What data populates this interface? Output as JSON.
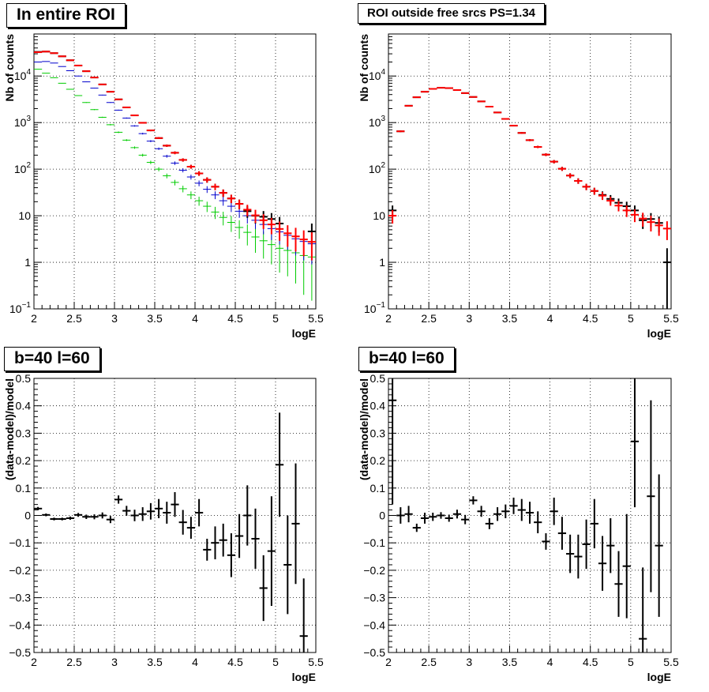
{
  "colors": {
    "data": "#000000",
    "model": "#ff0000",
    "blue": "#0000cc",
    "green": "#00cc00"
  },
  "pads": [
    {
      "title": "In entire ROI",
      "xlabel": "logE",
      "ylabel": "Nb of counts",
      "chart_data": {
        "type": "scatter",
        "log_y": true,
        "grid": true,
        "xlim": [
          2,
          5.5
        ],
        "ylim": [
          0.1,
          80000
        ],
        "x_ticks": [
          "2",
          "2.5",
          "3",
          "3.5",
          "4",
          "4.5",
          "5",
          "5.5"
        ],
        "y_ticks": [
          {
            "v": 0.1,
            "base": "10",
            "exp": "−1"
          },
          {
            "v": 1,
            "label": "1"
          },
          {
            "v": 10,
            "label": "10"
          },
          {
            "v": 100,
            "base": "10",
            "exp": "2"
          },
          {
            "v": 1000,
            "base": "10",
            "exp": "3"
          },
          {
            "v": 10000,
            "base": "10",
            "exp": "4"
          }
        ],
        "x": [
          2.05,
          2.15,
          2.25,
          2.35,
          2.45,
          2.55,
          2.65,
          2.75,
          2.85,
          2.95,
          3.05,
          3.15,
          3.25,
          3.35,
          3.45,
          3.55,
          3.65,
          3.75,
          3.85,
          3.95,
          4.05,
          4.15,
          4.25,
          4.35,
          4.45,
          4.55,
          4.65,
          4.75,
          4.85,
          4.95,
          5.05,
          5.15,
          5.25,
          5.35,
          5.45
        ],
        "series": [
          {
            "color": "green",
            "style": "tick",
            "values": [
              14000,
              11500,
              9200,
              7000,
              5200,
              3800,
              2700,
              1900,
              1300,
              900,
              620,
              420,
              290,
              200,
              140,
              100,
              72,
              52,
              38,
              28,
              21,
              16,
              12,
              9.2,
              7.2,
              5.6,
              4.4,
              3.5,
              2.9,
              2.4,
              2.0,
              1.8,
              1.6,
              1.4,
              1.3
            ],
            "errors": [
              118,
              107,
              96,
              84,
              72,
              62,
              52,
              44,
              36,
              30,
              25,
              20,
              17,
              14,
              12,
              10,
              8.5,
              7.2,
              6.2,
              5.3,
              4.6,
              4,
              3.5,
              3,
              2.7,
              2.4,
              2.1,
              1.9,
              1.7,
              1.5,
              1.4,
              1.3,
              1.25,
              1.2,
              1.15
            ]
          },
          {
            "color": "blue",
            "style": "tick",
            "values": [
              20000,
              20500,
              19000,
              16000,
              13000,
              10000,
              7500,
              5500,
              3900,
              2700,
              1850,
              1250,
              850,
              580,
              400,
              275,
              190,
              135,
              95,
              68,
              50,
              37,
              28,
              21,
              16,
              12.5,
              10,
              8,
              6.5,
              5.3,
              4.5,
              3.8,
              3.2,
              2.8,
              2.5
            ],
            "errors": [
              140,
              143,
              138,
              126,
              114,
              100,
              87,
              74,
              62,
              52,
              43,
              35,
              29,
              24,
              20,
              16.6,
              13.8,
              11.6,
              9.7,
              8.2,
              7,
              6.1,
              5.3,
              4.6,
              4,
              3.5,
              3.2,
              2.8,
              2.5,
              2.3,
              2.1,
              1.95,
              1.8,
              1.7,
              1.6
            ]
          },
          {
            "color": "data",
            "style": "cross",
            "values": [
              33000,
              33500,
              31000,
              26500,
              21800,
              16800,
              12700,
              9300,
              6600,
              4600,
              3150,
              2120,
              1430,
              990,
              680,
              465,
              320,
              225,
              158,
              113,
              81,
              59,
              42,
              31,
              23.5,
              18,
              12.5,
              10,
              9.5,
              8.5,
              6.8,
              null,
              null,
              null,
              4.6
            ],
            "errors": [
              180,
              180,
              175,
              163,
              148,
              130,
              113,
              96,
              81,
              68,
              56,
              46,
              38,
              31,
              26,
              21.6,
              17.9,
              15,
              12.6,
              10.6,
              9,
              7.7,
              6.5,
              5.6,
              4.8,
              4.2,
              3.5,
              3.2,
              3.1,
              2.9,
              2.6,
              null,
              null,
              null,
              2.2
            ]
          },
          {
            "color": "model",
            "style": "cross",
            "values": [
              32500,
              33500,
              31000,
              26500,
              21800,
              16800,
              12700,
              9300,
              6600,
              4600,
              3150,
              2120,
              1430,
              990,
              680,
              465,
              320,
              225,
              158,
              113,
              81,
              59,
              42,
              31,
              23.5,
              18,
              13.5,
              10.2,
              8,
              6.5,
              5.2,
              4.2,
              3.6,
              3.1,
              2.75
            ],
            "errors": [
              180,
              180,
              175,
              163,
              148,
              130,
              113,
              96,
              81,
              68,
              56,
              46,
              38,
              31,
              26,
              21.6,
              17.9,
              15,
              12.6,
              10.6,
              9,
              7.7,
              6.5,
              5.6,
              4.8,
              4.2,
              3.7,
              3.2,
              2.8,
              2.5,
              2.3,
              2.05,
              1.9,
              1.75,
              1.65
            ]
          }
        ]
      }
    },
    {
      "title": "ROI outside free srcs PS=1.34",
      "xlabel": "logE",
      "ylabel": "Nb of counts",
      "chart_data": {
        "type": "scatter",
        "log_y": true,
        "grid": true,
        "xlim": [
          2,
          5.5
        ],
        "ylim": [
          0.1,
          80000
        ],
        "x_ticks": [
          "2",
          "2.5",
          "3",
          "3.5",
          "4",
          "4.5",
          "5",
          "5.5"
        ],
        "y_ticks": [
          {
            "v": 0.1,
            "base": "10",
            "exp": "−1"
          },
          {
            "v": 1,
            "label": "1"
          },
          {
            "v": 10,
            "label": "10"
          },
          {
            "v": 100,
            "base": "10",
            "exp": "2"
          },
          {
            "v": 1000,
            "base": "10",
            "exp": "3"
          },
          {
            "v": 10000,
            "base": "10",
            "exp": "4"
          }
        ],
        "x": [
          2.05,
          2.15,
          2.25,
          2.35,
          2.45,
          2.55,
          2.65,
          2.75,
          2.85,
          2.95,
          3.05,
          3.15,
          3.25,
          3.35,
          3.45,
          3.55,
          3.65,
          3.75,
          3.85,
          3.95,
          4.05,
          4.15,
          4.25,
          4.35,
          4.45,
          4.55,
          4.65,
          4.75,
          4.85,
          4.95,
          5.05,
          5.15,
          5.25,
          5.35,
          5.45
        ],
        "series": [
          {
            "color": "data",
            "style": "cross",
            "values": [
              13,
              650,
              2300,
              3500,
              4600,
              5300,
              5600,
              5500,
              5000,
              4300,
              3550,
              2850,
              2200,
              1650,
              1200,
              860,
              600,
              420,
              300,
              205,
              145,
              102,
              73,
              56,
              42,
              34,
              28,
              23,
              19,
              16,
              13,
              8,
              8.5,
              7,
              1
            ],
            "errors": [
              3.6,
              25,
              48,
              59,
              68,
              73,
              75,
              74,
              71,
              66,
              60,
              53,
              47,
              41,
              35,
              29,
              24,
              20,
              17,
              14,
              12,
              10,
              8.5,
              7.5,
              6.5,
              5.8,
              5.3,
              4.8,
              4.4,
              4,
              3.6,
              2.8,
              2.9,
              2.6,
              1
            ]
          },
          {
            "color": "model",
            "style": "cross",
            "values": [
              10,
              650,
              2300,
              3500,
              4600,
              5300,
              5600,
              5500,
              5000,
              4300,
              3550,
              2850,
              2200,
              1650,
              1200,
              860,
              600,
              420,
              300,
              205,
              145,
              102,
              73,
              56,
              42,
              34,
              27,
              21,
              16.5,
              13,
              10.5,
              8.7,
              7.3,
              6.2,
              5.3
            ],
            "errors": [
              3.2,
              25,
              48,
              59,
              68,
              73,
              75,
              74,
              71,
              66,
              60,
              53,
              47,
              41,
              35,
              29,
              24,
              20,
              17,
              14,
              12,
              10,
              8.5,
              7.5,
              6.5,
              5.8,
              5.2,
              4.6,
              4.1,
              3.6,
              3.2,
              2.9,
              2.7,
              2.5,
              2.3
            ]
          }
        ]
      }
    },
    {
      "title": "b=40 l=60",
      "xlabel": "logE",
      "ylabel": "(data-model)/model",
      "chart_data": {
        "type": "scatter",
        "log_y": false,
        "grid": true,
        "xlim": [
          2,
          5.5
        ],
        "ylim": [
          -0.5,
          0.5
        ],
        "x_ticks": [
          "2",
          "2.5",
          "3",
          "3.5",
          "4",
          "4.5",
          "5",
          "5.5"
        ],
        "y_ticks": [
          {
            "v": -0.5,
            "label": "−0.5"
          },
          {
            "v": -0.4,
            "label": "−0.4"
          },
          {
            "v": -0.3,
            "label": "−0.3"
          },
          {
            "v": -0.2,
            "label": "−0.2"
          },
          {
            "v": -0.1,
            "label": "−0.1"
          },
          {
            "v": 0,
            "label": "0"
          },
          {
            "v": 0.1,
            "label": "0.1"
          },
          {
            "v": 0.2,
            "label": "0.2"
          },
          {
            "v": 0.3,
            "label": "0.3"
          },
          {
            "v": 0.4,
            "label": "0.4"
          },
          {
            "v": 0.5,
            "label": "0.5"
          }
        ],
        "x": [
          2.05,
          2.15,
          2.25,
          2.35,
          2.45,
          2.55,
          2.65,
          2.75,
          2.85,
          2.95,
          3.05,
          3.15,
          3.25,
          3.35,
          3.45,
          3.55,
          3.65,
          3.75,
          3.85,
          3.95,
          4.05,
          4.15,
          4.25,
          4.35,
          4.45,
          4.55,
          4.65,
          4.75,
          4.85,
          4.95,
          5.05,
          5.15,
          5.25,
          5.35
        ],
        "series": [
          {
            "color": "data",
            "style": "cross",
            "values": [
              0.025,
              0.002,
              -0.013,
              -0.013,
              -0.01,
              0.002,
              -0.005,
              -0.005,
              0.0,
              -0.015,
              0.058,
              0.017,
              0.0,
              0.005,
              0.015,
              0.025,
              0.01,
              0.04,
              -0.025,
              -0.045,
              0.01,
              -0.125,
              -0.1,
              -0.09,
              -0.145,
              -0.075,
              0.0,
              -0.085,
              -0.265,
              -0.13,
              0.185,
              -0.18,
              -0.03,
              -0.44
            ],
            "errors": [
              0.006,
              0.005,
              0.005,
              0.005,
              0.006,
              0.007,
              0.008,
              0.009,
              0.011,
              0.013,
              0.015,
              0.018,
              0.021,
              0.025,
              0.03,
              0.035,
              0.04,
              0.045,
              0.045,
              0.04,
              0.05,
              0.04,
              0.06,
              0.06,
              0.08,
              0.08,
              0.11,
              0.11,
              0.12,
              0.2,
              0.19,
              0.18,
              0.22,
              0.21
            ]
          }
        ]
      }
    },
    {
      "title": "b=40 l=60",
      "xlabel": "logE",
      "ylabel": "(data-model)/model",
      "chart_data": {
        "type": "scatter",
        "log_y": false,
        "grid": true,
        "xlim": [
          2,
          5.5
        ],
        "ylim": [
          -0.5,
          0.5
        ],
        "x_ticks": [
          "2",
          "2.5",
          "3",
          "3.5",
          "4",
          "4.5",
          "5",
          "5.5"
        ],
        "y_ticks": [
          {
            "v": -0.5,
            "label": "−0.5"
          },
          {
            "v": -0.4,
            "label": "−0.4"
          },
          {
            "v": -0.3,
            "label": "−0.3"
          },
          {
            "v": -0.2,
            "label": "−0.2"
          },
          {
            "v": -0.1,
            "label": "−0.1"
          },
          {
            "v": 0,
            "label": "0"
          },
          {
            "v": 0.1,
            "label": "0.1"
          },
          {
            "v": 0.2,
            "label": "0.2"
          },
          {
            "v": 0.3,
            "label": "0.3"
          },
          {
            "v": 0.4,
            "label": "0.4"
          },
          {
            "v": 0.5,
            "label": "0.5"
          }
        ],
        "x": [
          2.05,
          2.15,
          2.25,
          2.35,
          2.45,
          2.55,
          2.65,
          2.75,
          2.85,
          2.95,
          3.05,
          3.15,
          3.25,
          3.35,
          3.45,
          3.55,
          3.65,
          3.75,
          3.85,
          3.95,
          4.05,
          4.15,
          4.25,
          4.35,
          4.45,
          4.55,
          4.65,
          4.75,
          4.85,
          4.95,
          5.05,
          5.15,
          5.25,
          5.35
        ],
        "series": [
          {
            "color": "data",
            "style": "cross",
            "values": [
              0.42,
              0.0,
              0.005,
              -0.045,
              -0.01,
              -0.005,
              0.0,
              -0.01,
              0.005,
              -0.015,
              0.055,
              0.015,
              -0.03,
              0.005,
              0.015,
              0.035,
              0.02,
              0.01,
              -0.025,
              -0.095,
              0.015,
              -0.065,
              -0.14,
              -0.15,
              -0.105,
              -0.03,
              -0.175,
              -0.11,
              -0.25,
              -0.185,
              0.27,
              -0.45,
              0.07,
              -0.11
            ],
            "errors": [
              0.38,
              0.03,
              0.03,
              0.015,
              0.02,
              0.015,
              0.012,
              0.013,
              0.016,
              0.017,
              0.015,
              0.02,
              0.02,
              0.025,
              0.025,
              0.03,
              0.04,
              0.04,
              0.04,
              0.03,
              0.05,
              0.06,
              0.07,
              0.08,
              0.09,
              0.09,
              0.1,
              0.1,
              0.12,
              0.19,
              0.24,
              0.26,
              0.35,
              0.26
            ]
          }
        ]
      }
    }
  ]
}
